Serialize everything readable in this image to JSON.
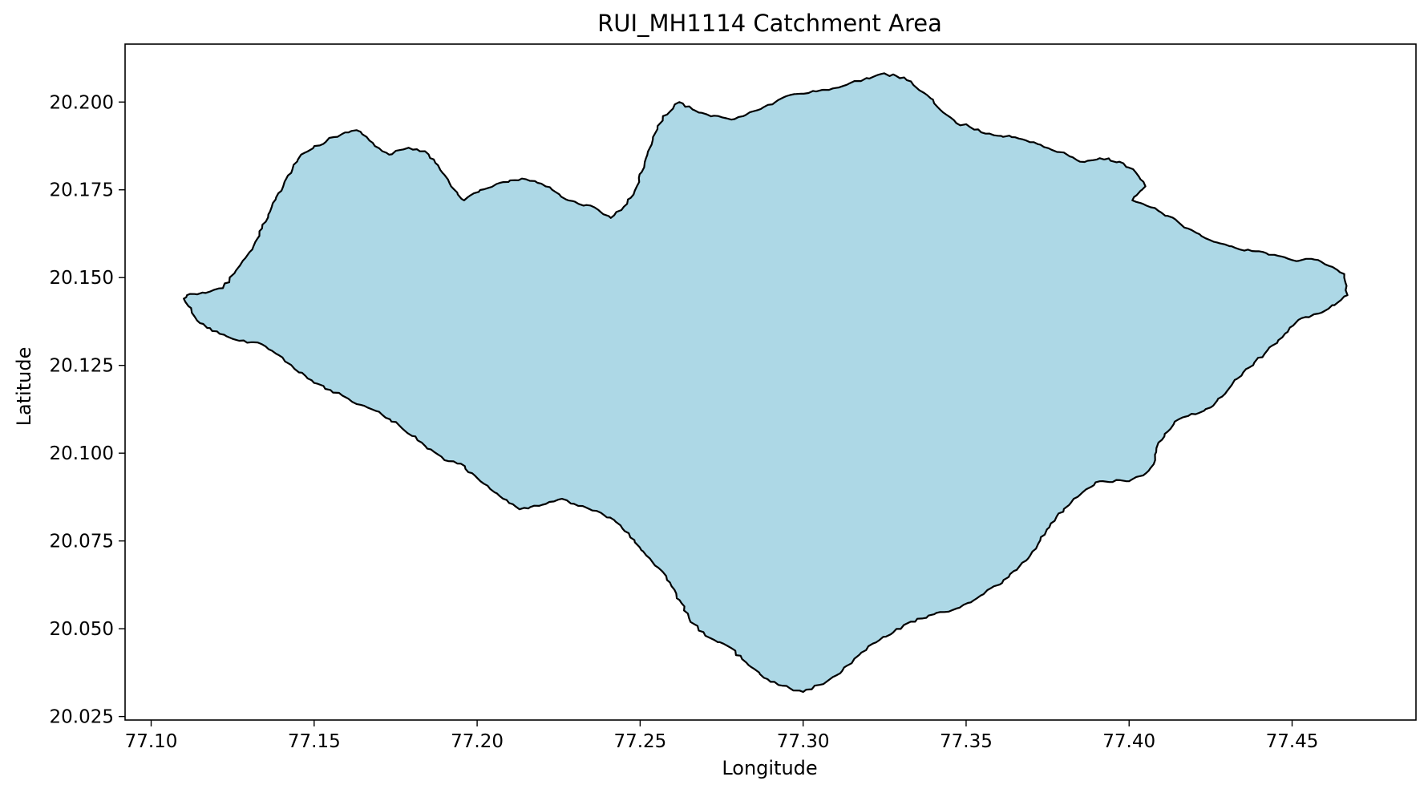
{
  "chart_data": {
    "type": "map",
    "title": "RUI_MH1114 Catchment Area",
    "xlabel": "Longitude",
    "ylabel": "Latitude",
    "xlim": [
      77.092,
      77.488
    ],
    "ylim": [
      20.024,
      20.2165
    ],
    "xticks": [
      77.1,
      77.15,
      77.2,
      77.25,
      77.3,
      77.35,
      77.4,
      77.45
    ],
    "xtick_labels": [
      "77.10",
      "77.15",
      "77.20",
      "77.25",
      "77.30",
      "77.35",
      "77.40",
      "77.45"
    ],
    "yticks": [
      20.025,
      20.05,
      20.075,
      20.1,
      20.125,
      20.15,
      20.175,
      20.2
    ],
    "ytick_labels": [
      "20.025",
      "20.050",
      "20.075",
      "20.100",
      "20.125",
      "20.150",
      "20.175",
      "20.200"
    ],
    "grid": false,
    "legend": "none",
    "fill_color": "#add8e6",
    "edge_color": "#000000",
    "polygon": {
      "name": "RUI_MH1114",
      "lon": [
        77.111,
        77.118,
        77.122,
        77.126,
        77.131,
        77.134,
        77.139,
        77.146,
        77.156,
        77.163,
        77.167,
        77.173,
        77.179,
        77.184,
        77.188,
        77.192,
        77.196,
        77.199,
        77.207,
        77.215,
        77.221,
        77.228,
        77.236,
        77.241,
        77.246,
        77.249,
        77.253,
        77.257,
        77.262,
        77.268,
        77.278,
        77.287,
        77.296,
        77.304,
        77.31,
        77.317,
        77.324,
        77.331,
        77.338,
        77.343,
        77.347,
        77.351,
        77.356,
        77.364,
        77.372,
        77.381,
        77.385,
        77.391,
        77.397,
        77.402,
        77.405,
        77.401,
        77.409,
        77.418,
        77.427,
        77.434,
        77.442,
        77.45,
        77.458,
        77.466,
        77.467,
        77.459,
        77.452,
        77.447,
        77.435,
        77.425,
        77.414,
        77.409,
        77.408,
        77.406,
        77.4,
        77.391,
        77.383,
        77.376,
        77.369,
        77.361,
        77.348,
        77.333,
        77.32,
        77.312,
        77.305,
        77.3,
        77.296,
        77.288,
        77.277,
        77.27,
        77.265,
        77.258,
        77.253,
        77.247,
        77.242,
        77.238,
        77.231,
        77.226,
        77.219,
        77.213,
        77.208,
        77.201,
        77.195,
        77.19,
        77.183,
        77.176,
        77.169,
        77.163,
        77.155,
        77.15,
        77.144,
        77.139,
        77.134,
        77.127,
        77.121,
        77.115,
        77.11
      ],
      "lat": [
        20.145,
        20.146,
        20.147,
        20.152,
        20.158,
        20.164,
        20.174,
        20.185,
        20.19,
        20.192,
        20.189,
        20.185,
        20.187,
        20.186,
        20.182,
        20.176,
        20.172,
        20.174,
        20.177,
        20.178,
        20.176,
        20.172,
        20.17,
        20.167,
        20.171,
        20.176,
        20.187,
        20.196,
        20.2,
        20.197,
        20.195,
        20.198,
        20.202,
        20.203,
        20.204,
        20.206,
        20.208,
        20.207,
        20.202,
        20.197,
        20.194,
        20.193,
        20.191,
        20.19,
        20.188,
        20.185,
        20.183,
        20.184,
        20.183,
        20.18,
        20.176,
        20.172,
        20.169,
        20.164,
        20.16,
        20.158,
        20.157,
        20.155,
        20.155,
        20.151,
        20.145,
        20.14,
        20.138,
        20.133,
        20.123,
        20.113,
        20.109,
        20.103,
        20.098,
        20.095,
        20.092,
        20.092,
        20.087,
        20.08,
        20.07,
        20.063,
        20.056,
        20.052,
        20.045,
        20.038,
        20.034,
        20.032,
        20.033,
        20.036,
        20.045,
        20.048,
        20.053,
        20.065,
        20.07,
        20.076,
        20.081,
        20.083,
        20.085,
        20.087,
        20.085,
        20.084,
        20.087,
        20.092,
        20.097,
        20.098,
        20.103,
        20.108,
        20.112,
        20.114,
        20.118,
        20.12,
        20.124,
        20.128,
        20.131,
        20.132,
        20.134,
        20.137,
        20.144
      ]
    }
  }
}
